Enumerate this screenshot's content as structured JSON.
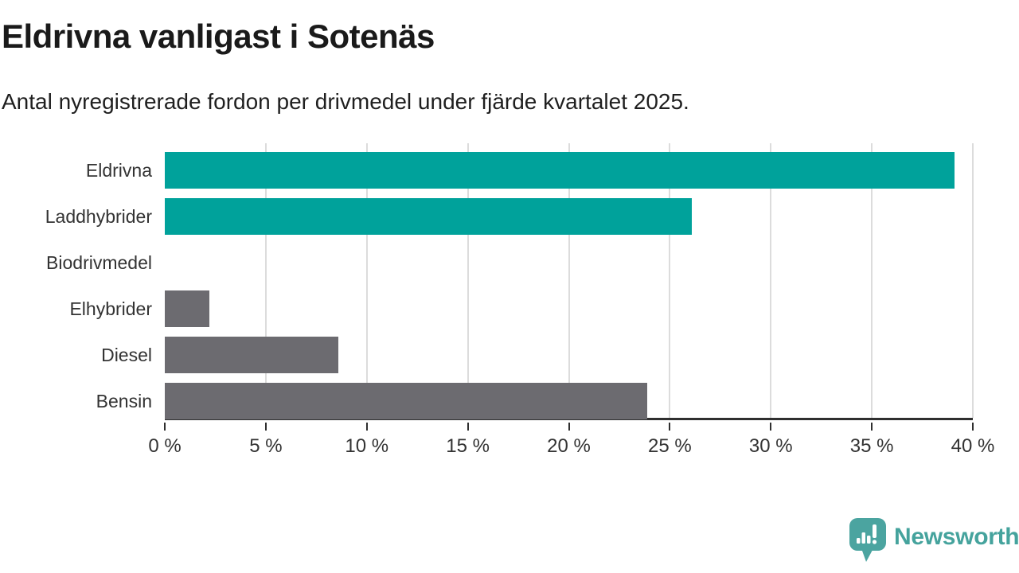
{
  "header": {
    "title": "Eldrivna vanligast i Sotenäs",
    "subtitle": "Antal nyregistrerade fordon per drivmedel under fjärde kvartalet 2025."
  },
  "chart_data": {
    "type": "bar",
    "orientation": "horizontal",
    "title": "Eldrivna vanligast i Sotenäs",
    "subtitle": "Antal nyregistrerade fordon per drivmedel under fjärde kvartalet 2025.",
    "categories": [
      "Eldrivna",
      "Laddhybrider",
      "Biodrivmedel",
      "Elhybrider",
      "Diesel",
      "Bensin"
    ],
    "values": [
      39.1,
      26.1,
      0,
      2.2,
      8.6,
      23.9
    ],
    "unit": "%",
    "xlabel": "",
    "ylabel": "",
    "xlim": [
      0,
      40
    ],
    "x_ticks": [
      0,
      5,
      10,
      15,
      20,
      25,
      30,
      35,
      40
    ],
    "x_tick_labels": [
      "0 %",
      "5 %",
      "10 %",
      "15 %",
      "20 %",
      "25 %",
      "30 %",
      "35 %",
      "40 %"
    ],
    "grid": true,
    "legend": false,
    "bar_colors": [
      "#00a29b",
      "#00a29b",
      "#6c6b70",
      "#6c6b70",
      "#6c6b70",
      "#6c6b70"
    ],
    "colors": {
      "highlight": "#00a29b",
      "default": "#6c6b70",
      "gridline": "#dcdcdc",
      "axis": "#2f2f2f"
    }
  },
  "footer": {
    "brand": "Newsworthy",
    "brand_color": "#45a39d",
    "logo_icon": "newsworthy-speech-bubble-bar-chart-icon"
  }
}
